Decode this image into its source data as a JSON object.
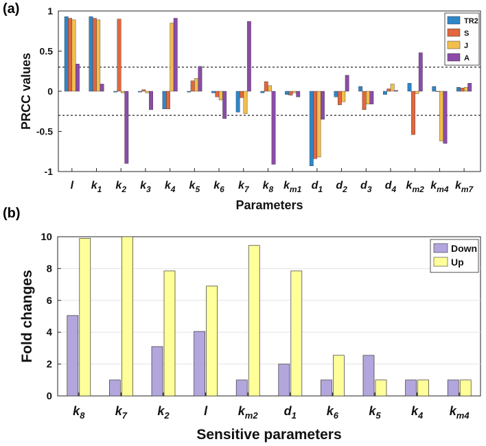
{
  "panels": {
    "a": "(a)",
    "b": "(b)"
  },
  "colors": {
    "TR2": "#2f86c8",
    "S": "#e3663f",
    "J": "#f2be4e",
    "A": "#8b4ca8",
    "Down": "#b3a6dd",
    "Up": "#ffff9a"
  },
  "chart_data": [
    {
      "type": "bar",
      "title": "",
      "xlabel": "Parameters",
      "ylabel": "PRCC values",
      "ylim": [
        -1,
        1
      ],
      "yticks": [
        "-1",
        "-0.5",
        "0",
        "0.5",
        "1"
      ],
      "ytick_values": [
        -1,
        -0.5,
        0,
        0.5,
        1
      ],
      "reference_lines": [
        0.3,
        -0.3
      ],
      "legend_position": "top-right",
      "categories": [
        {
          "base": "l",
          "sub": ""
        },
        {
          "base": "k",
          "sub": "1"
        },
        {
          "base": "k",
          "sub": "2"
        },
        {
          "base": "k",
          "sub": "3"
        },
        {
          "base": "k",
          "sub": "4"
        },
        {
          "base": "k",
          "sub": "5"
        },
        {
          "base": "k",
          "sub": "6"
        },
        {
          "base": "k",
          "sub": "7"
        },
        {
          "base": "k",
          "sub": "8"
        },
        {
          "base": "k",
          "sub": "m1"
        },
        {
          "base": "d",
          "sub": "1"
        },
        {
          "base": "d",
          "sub": "2"
        },
        {
          "base": "d",
          "sub": "3"
        },
        {
          "base": "d",
          "sub": "4"
        },
        {
          "base": "k",
          "sub": "m2"
        },
        {
          "base": "k",
          "sub": "m4"
        },
        {
          "base": "k",
          "sub": "m7"
        }
      ],
      "series": [
        {
          "name": "TR2",
          "values": [
            0.93,
            0.93,
            -0.01,
            -0.01,
            -0.22,
            -0.01,
            -0.02,
            -0.26,
            -0.02,
            -0.04,
            -0.93,
            -0.07,
            0.06,
            -0.04,
            0.1,
            0.06,
            0.05
          ]
        },
        {
          "name": "S",
          "values": [
            0.91,
            0.91,
            0.9,
            0.02,
            -0.22,
            0.13,
            -0.07,
            -0.08,
            0.12,
            -0.05,
            -0.84,
            -0.17,
            -0.23,
            0.03,
            -0.54,
            0.0,
            0.04
          ]
        },
        {
          "name": "J",
          "values": [
            0.89,
            0.89,
            -0.02,
            -0.02,
            0.85,
            0.16,
            -0.11,
            -0.28,
            0.07,
            -0.02,
            -0.82,
            -0.13,
            -0.16,
            0.09,
            -0.03,
            -0.62,
            0.05
          ]
        },
        {
          "name": "A",
          "values": [
            0.34,
            0.09,
            -0.9,
            -0.23,
            0.91,
            0.31,
            -0.34,
            0.87,
            -0.91,
            -0.07,
            -0.35,
            0.2,
            -0.16,
            0.01,
            0.48,
            -0.65,
            0.1
          ]
        }
      ]
    },
    {
      "type": "bar",
      "title": "",
      "xlabel": "Sensitive parameters",
      "ylabel": "Fold changes",
      "ylim": [
        0,
        10
      ],
      "yticks": [
        "0",
        "2",
        "4",
        "6",
        "8",
        "10"
      ],
      "ytick_values": [
        0,
        2,
        4,
        6,
        8,
        10
      ],
      "grid": true,
      "legend_position": "top-right",
      "categories": [
        {
          "base": "k",
          "sub": "8"
        },
        {
          "base": "k",
          "sub": "7"
        },
        {
          "base": "k",
          "sub": "2"
        },
        {
          "base": "l",
          "sub": ""
        },
        {
          "base": "k",
          "sub": "m2"
        },
        {
          "base": "d",
          "sub": "1"
        },
        {
          "base": "k",
          "sub": "6"
        },
        {
          "base": "k",
          "sub": "5"
        },
        {
          "base": "k",
          "sub": "4"
        },
        {
          "base": "k",
          "sub": "m4"
        }
      ],
      "series": [
        {
          "name": "Down",
          "values": [
            5.05,
            1.0,
            3.1,
            4.05,
            1.0,
            2.0,
            1.0,
            2.55,
            1.0,
            1.0
          ]
        },
        {
          "name": "Up",
          "values": [
            9.9,
            10.0,
            7.85,
            6.9,
            9.45,
            7.85,
            2.55,
            1.0,
            1.0,
            1.0
          ]
        }
      ]
    }
  ]
}
